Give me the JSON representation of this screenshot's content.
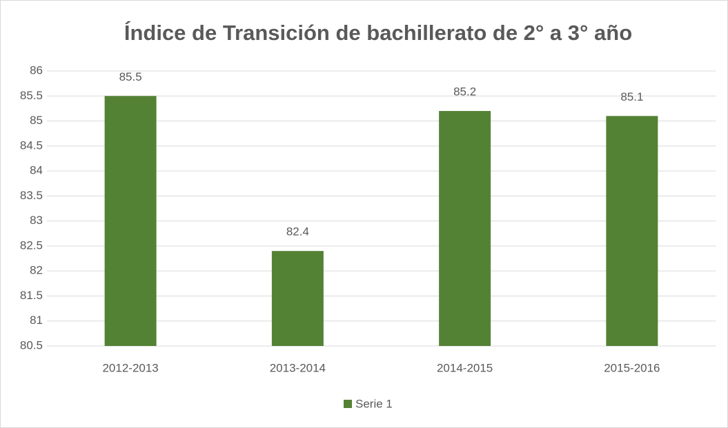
{
  "chart_data": {
    "type": "bar",
    "title": "Índice de Transición de bachillerato de 2° a 3° año",
    "categories": [
      "2012-2013",
      "2013-2014",
      "2014-2015",
      "2015-2016"
    ],
    "series": [
      {
        "name": "Serie 1",
        "color": "#548235",
        "values": [
          85.5,
          82.4,
          85.2,
          85.1
        ]
      }
    ],
    "ylim": [
      80.5,
      86
    ],
    "yticks": [
      80.5,
      81,
      81.5,
      82,
      82.5,
      83,
      83.5,
      84,
      84.5,
      85,
      85.5,
      86
    ],
    "grid": true,
    "legend": "bottom"
  }
}
